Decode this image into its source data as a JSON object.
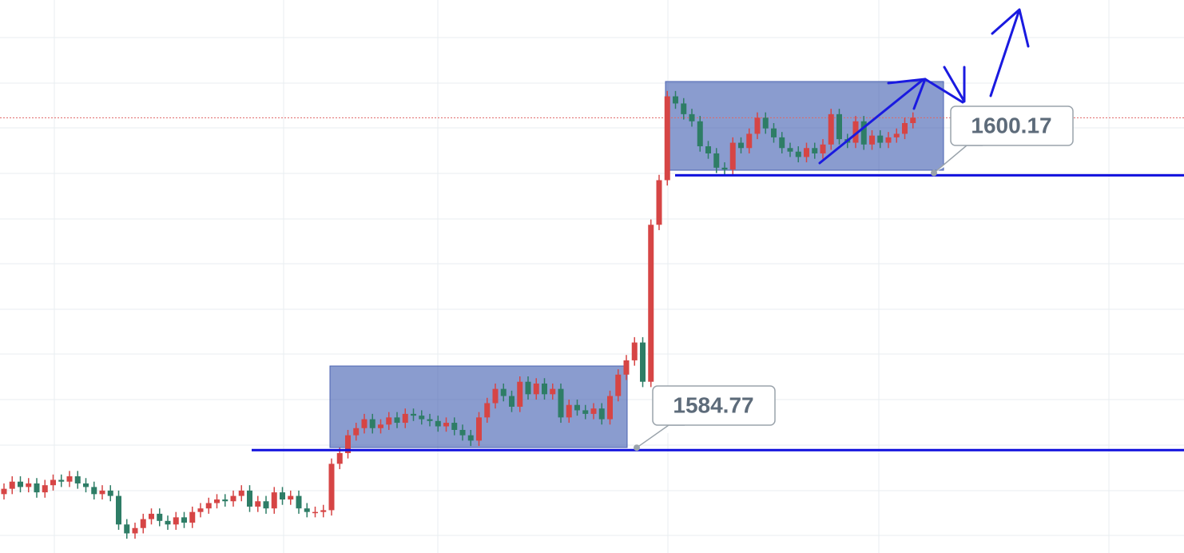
{
  "chart_data": {
    "type": "candlestick",
    "open": [
      1582.3,
      1582.6,
      1583.0,
      1582.7,
      1582.9,
      1582.4,
      1582.8,
      1583.1,
      1583.0,
      1583.3,
      1582.9,
      1582.7,
      1582.3,
      1582.5,
      1582.2,
      1580.6,
      1580.1,
      1580.4,
      1580.9,
      1581.2,
      1580.8,
      1580.6,
      1581.0,
      1580.7,
      1581.3,
      1581.5,
      1581.8,
      1582.0,
      1581.9,
      1582.2,
      1582.5,
      1581.6,
      1581.9,
      1581.5,
      1582.4,
      1582.0,
      1582.2,
      1581.5,
      1581.3,
      1581.3,
      1581.4,
      1584.0,
      1584.6,
      1585.6,
      1586.0,
      1586.5,
      1586.0,
      1586.2,
      1586.6,
      1586.3,
      1586.8,
      1586.7,
      1586.5,
      1586.4,
      1586.1,
      1586.3,
      1585.9,
      1585.6,
      1585.3,
      1586.6,
      1587.4,
      1588.2,
      1587.8,
      1587.2,
      1588.6,
      1587.9,
      1588.5,
      1587.9,
      1588.2,
      1586.6,
      1587.3,
      1587.0,
      1586.8,
      1587.1,
      1586.5,
      1587.8,
      1589.0,
      1589.8,
      1590.8,
      1588.6,
      1597.4,
      1599.9,
      1604.6,
      1604.2,
      1603.6,
      1603.2,
      1601.8,
      1601.4,
      1600.6,
      1600.5,
      1602.0,
      1601.7,
      1602.5,
      1603.4,
      1602.8,
      1602.3,
      1601.7,
      1601.5,
      1601.2,
      1601.7,
      1601.4,
      1601.9,
      1603.6,
      1602.2,
      1602.0,
      1603.2,
      1601.9,
      1602.4,
      1602.0,
      1602.3,
      1602.5,
      1603.1
    ],
    "high": [
      1582.9,
      1583.3,
      1583.3,
      1583.2,
      1583.2,
      1583.1,
      1583.4,
      1583.4,
      1583.6,
      1583.6,
      1583.2,
      1583.0,
      1582.8,
      1582.8,
      1582.5,
      1580.9,
      1580.7,
      1581.2,
      1581.5,
      1581.5,
      1581.1,
      1581.3,
      1581.3,
      1581.6,
      1581.8,
      1582.1,
      1582.3,
      1582.3,
      1582.5,
      1582.8,
      1582.8,
      1582.2,
      1582.2,
      1582.7,
      1582.7,
      1582.5,
      1582.5,
      1581.8,
      1581.6,
      1581.7,
      1584.3,
      1584.9,
      1585.9,
      1586.3,
      1586.8,
      1586.8,
      1586.5,
      1586.9,
      1586.9,
      1587.1,
      1587.1,
      1587.0,
      1586.8,
      1586.7,
      1586.6,
      1586.6,
      1586.2,
      1585.9,
      1586.9,
      1587.7,
      1588.5,
      1588.5,
      1588.1,
      1588.9,
      1588.9,
      1588.8,
      1588.8,
      1588.5,
      1588.5,
      1587.6,
      1587.6,
      1587.3,
      1587.4,
      1587.4,
      1588.1,
      1589.3,
      1590.1,
      1591.1,
      1591.1,
      1597.7,
      1600.2,
      1604.9,
      1604.9,
      1604.5,
      1603.9,
      1603.5,
      1602.1,
      1601.7,
      1600.9,
      1602.3,
      1602.3,
      1602.8,
      1603.7,
      1603.7,
      1603.1,
      1602.6,
      1602.0,
      1601.8,
      1602.0,
      1602.0,
      1602.2,
      1603.9,
      1603.9,
      1602.5,
      1603.5,
      1603.5,
      1602.7,
      1602.7,
      1602.6,
      1602.8,
      1603.4,
      1603.7
    ],
    "low": [
      1582.0,
      1582.3,
      1582.4,
      1582.4,
      1582.1,
      1582.1,
      1582.5,
      1582.7,
      1582.7,
      1582.6,
      1582.4,
      1582.0,
      1582.0,
      1581.9,
      1580.3,
      1579.8,
      1579.8,
      1580.1,
      1580.6,
      1580.5,
      1580.3,
      1580.3,
      1580.4,
      1580.4,
      1581.0,
      1581.2,
      1581.5,
      1581.6,
      1581.6,
      1581.9,
      1581.3,
      1581.3,
      1581.2,
      1581.2,
      1581.7,
      1581.7,
      1581.2,
      1581.0,
      1581.0,
      1581.0,
      1581.1,
      1583.7,
      1584.3,
      1585.3,
      1585.7,
      1585.7,
      1585.7,
      1585.9,
      1586.0,
      1586.0,
      1586.4,
      1586.2,
      1586.1,
      1585.8,
      1585.8,
      1585.6,
      1585.3,
      1585.0,
      1585.0,
      1586.3,
      1587.1,
      1587.5,
      1586.9,
      1586.9,
      1587.6,
      1587.6,
      1587.6,
      1587.6,
      1586.3,
      1586.3,
      1586.7,
      1586.5,
      1586.5,
      1586.2,
      1586.2,
      1587.5,
      1588.7,
      1589.5,
      1588.3,
      1588.3,
      1597.1,
      1599.6,
      1603.9,
      1603.3,
      1602.9,
      1601.5,
      1601.1,
      1600.3,
      1600.2,
      1600.2,
      1601.4,
      1601.4,
      1602.2,
      1602.5,
      1602.0,
      1601.4,
      1601.2,
      1600.9,
      1600.9,
      1601.1,
      1601.1,
      1601.6,
      1601.9,
      1601.7,
      1601.7,
      1601.6,
      1601.6,
      1601.7,
      1601.7,
      1602.0,
      1602.2,
      1602.8
    ],
    "close": [
      1582.6,
      1583.0,
      1582.7,
      1582.9,
      1582.4,
      1582.8,
      1583.1,
      1583.0,
      1583.3,
      1582.9,
      1582.7,
      1582.3,
      1582.5,
      1582.2,
      1580.6,
      1580.1,
      1580.4,
      1580.9,
      1581.2,
      1580.8,
      1580.6,
      1581.0,
      1580.7,
      1581.3,
      1581.5,
      1581.8,
      1582.0,
      1581.9,
      1582.2,
      1582.5,
      1581.6,
      1581.9,
      1581.5,
      1582.4,
      1582.0,
      1582.2,
      1581.5,
      1581.3,
      1581.3,
      1581.4,
      1584.0,
      1584.6,
      1585.6,
      1586.0,
      1586.5,
      1586.0,
      1586.2,
      1586.6,
      1586.3,
      1586.8,
      1586.7,
      1586.5,
      1586.4,
      1586.1,
      1586.3,
      1585.9,
      1585.6,
      1585.3,
      1586.6,
      1587.4,
      1588.2,
      1587.8,
      1587.2,
      1588.6,
      1587.9,
      1588.5,
      1587.9,
      1588.2,
      1586.6,
      1587.3,
      1587.0,
      1586.8,
      1587.1,
      1586.5,
      1587.8,
      1589.0,
      1589.8,
      1590.8,
      1588.6,
      1597.4,
      1599.9,
      1604.6,
      1604.2,
      1603.6,
      1603.2,
      1601.8,
      1601.4,
      1600.6,
      1600.5,
      1602.0,
      1601.7,
      1602.5,
      1603.4,
      1602.8,
      1602.3,
      1601.7,
      1601.5,
      1601.2,
      1601.7,
      1601.4,
      1601.9,
      1603.6,
      1602.2,
      1602.0,
      1603.2,
      1601.9,
      1602.4,
      1602.0,
      1602.3,
      1602.5,
      1603.1,
      1603.4
    ],
    "ylim": [
      1579,
      1610
    ],
    "up_color": "#d64545",
    "down_color": "#2e7d66",
    "levels": [
      1584.77,
      1600.17
    ]
  }
}
